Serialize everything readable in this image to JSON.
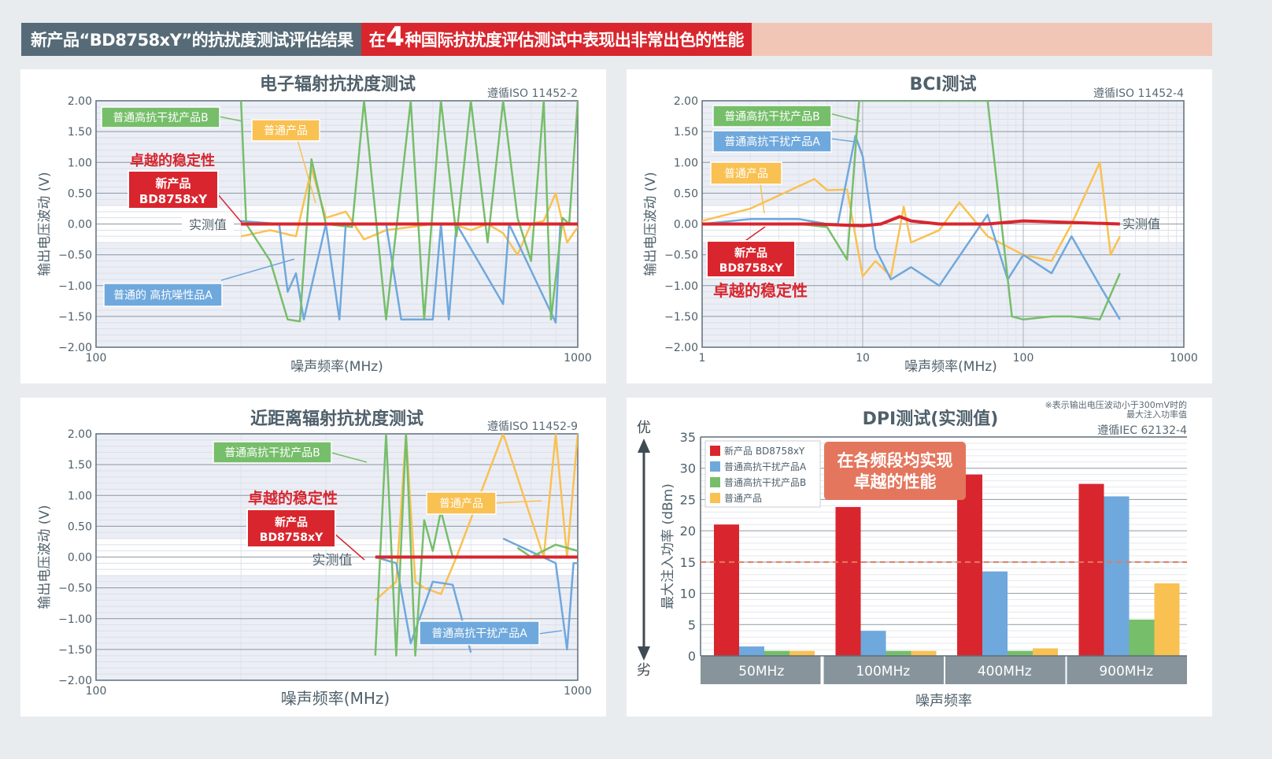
{
  "banner": {
    "left_text": "新产品“BD8758xY”的抗扰度测试评估结果",
    "right_prefix": "在",
    "right_number": "4",
    "right_suffix": "种国际抗扰度评估测试中表现出非常出色的性能",
    "colors": {
      "left_bg": "#566b77",
      "right_bg": "#d9262e",
      "tail_bg": "#f2c6b6"
    }
  },
  "colors": {
    "new_product": "#d9262e",
    "product_a": "#6fa8dc",
    "product_b": "#76be6a",
    "normal_product": "#f9c152",
    "axis": "#5d6f7b",
    "dashed_threshold": "#e47a5f"
  },
  "panels": {
    "radiated": {
      "title": "电子辐射抗扰度测试",
      "standard": "遵循ISO 11452-2",
      "ylabel": "输出电压波动 (V)",
      "xlabel": "噪声频率(MHz)",
      "x_ticks": [
        "100",
        "1000"
      ],
      "y_ticks": [
        "2.00",
        "1.50",
        "1.00",
        "0.50",
        "0.00",
        "−0.50",
        "−1.00",
        "−1.50",
        "−2.00"
      ],
      "labels": {
        "product_b": "普通高抗干扰产品B",
        "normal": "普通产品",
        "stability": "卓越的稳定性",
        "new_product_line1": "新产品",
        "new_product_line2": "BD8758xY",
        "measured": "实测值",
        "product_a": "普通的 高抗噪性品A"
      }
    },
    "bci": {
      "title": "BCI测试",
      "standard": "遵循ISO 11452-4",
      "ylabel": "输出电压波动 (V)",
      "xlabel": "噪声频率(MHz)",
      "x_ticks": [
        "1",
        "10",
        "100",
        "1000"
      ],
      "y_ticks": [
        "2.00",
        "1.50",
        "1.00",
        "0.50",
        "0.00",
        "−0.50",
        "−1.00",
        "−1.50",
        "−2.00"
      ],
      "labels": {
        "product_b": "普通高抗干扰产品B",
        "product_a": "普通高抗干扰产品A",
        "normal": "普通产品",
        "new_product_line1": "新产品",
        "new_product_line2": "BD8758xY",
        "stability": "卓越的稳定性",
        "measured": "实测值"
      }
    },
    "near_field": {
      "title": "近距离辐射抗扰度测试",
      "standard": "遵循ISO 11452-9",
      "ylabel": "输出电压波动 (V)",
      "xlabel": "噪声频率(MHz)",
      "x_ticks": [
        "100",
        "1000"
      ],
      "y_ticks": [
        "2.00",
        "1.50",
        "1.00",
        "0.50",
        "0.00",
        "−0.50",
        "−1.00",
        "−1.50",
        "−2.00"
      ],
      "labels": {
        "product_b": "普通高抗干扰产品B",
        "stability": "卓越的稳定性",
        "new_product_line1": "新产品",
        "new_product_line2": "BD8758xY",
        "measured": "实测值",
        "normal": "普通产品",
        "product_a": "普通高抗干扰产品A"
      }
    },
    "dpi": {
      "title": "DPI测试(实测值)",
      "note_line1": "※表示输出电压波动小于300mV时的",
      "note_line2": "最大注入功率值",
      "standard": "遵循IEC 62132-4",
      "ylabel": "最大注入功率 (dBm)",
      "xlabel": "噪声频率",
      "better": "优",
      "worse": "劣",
      "callout_line1": "在各频段均实现",
      "callout_line2": "卓越的性能",
      "legend": [
        "新产品 BD8758xY",
        "普通高抗干扰产品A",
        "普通高抗干扰产品B",
        "普通产品"
      ]
    }
  },
  "chart_data": [
    {
      "type": "line",
      "title": "电子辐射抗扰度测试",
      "subtitle": "遵循ISO 11452-2",
      "xlabel": "噪声频率(MHz)",
      "ylabel": "输出电压波动 (V)",
      "xscale": "log",
      "xlim": [
        100,
        1000
      ],
      "ylim": [
        -2.0,
        2.0
      ],
      "grid": true,
      "series": [
        {
          "name": "新产品 BD8758xY",
          "color": "#d9262e",
          "x": [
            200,
            1000
          ],
          "y": [
            0.0,
            0.0
          ]
        },
        {
          "name": "普通的 高抗噪性品A",
          "color": "#6fa8dc",
          "x": [
            200,
            240,
            250,
            260,
            270,
            300,
            320,
            330,
            400,
            430,
            500,
            520,
            540,
            560,
            700,
            720,
            900,
            920,
            1000
          ],
          "y": [
            0.05,
            0.0,
            -1.1,
            -0.8,
            -1.55,
            0.0,
            -1.55,
            0.0,
            0.0,
            -1.55,
            -1.55,
            0.0,
            -1.55,
            0.0,
            -1.3,
            0.0,
            -1.6,
            0.0,
            0.0
          ]
        },
        {
          "name": "普通高抗干扰产品B",
          "color": "#76be6a",
          "x": [
            200,
            205,
            230,
            250,
            265,
            280,
            300,
            340,
            360,
            400,
            450,
            480,
            520,
            560,
            600,
            650,
            700,
            750,
            800,
            850,
            880,
            930,
            960,
            1000
          ],
          "y": [
            2.0,
            0.0,
            -0.6,
            -1.55,
            -1.58,
            1.05,
            0.0,
            -0.05,
            2.0,
            -1.55,
            2.0,
            -1.55,
            2.0,
            -0.2,
            2.0,
            -0.3,
            2.0,
            0.1,
            -0.6,
            2.0,
            -1.55,
            0.1,
            0.0,
            2.0
          ]
        },
        {
          "name": "普通产品",
          "color": "#f9c152",
          "x": [
            200,
            230,
            260,
            280,
            300,
            330,
            360,
            400,
            450,
            500,
            550,
            600,
            650,
            700,
            750,
            800,
            850,
            900,
            950,
            1000
          ],
          "y": [
            -0.2,
            -0.1,
            -0.2,
            0.9,
            0.1,
            0.2,
            -0.25,
            -0.1,
            -0.05,
            0.0,
            0.0,
            -0.1,
            0.0,
            -0.15,
            -0.5,
            0.0,
            0.05,
            0.5,
            -0.3,
            -0.05
          ]
        }
      ],
      "annotations": [
        "卓越的稳定性",
        "新产品 BD8758xY",
        "实测值"
      ]
    },
    {
      "type": "line",
      "title": "BCI测试",
      "subtitle": "遵循ISO 11452-4",
      "xlabel": "噪声频率(MHz)",
      "ylabel": "输出电压波动 (V)",
      "xscale": "log",
      "xlim": [
        1,
        1000
      ],
      "ylim": [
        -2.0,
        2.0
      ],
      "grid": true,
      "series": [
        {
          "name": "新产品 BD8758xY",
          "color": "#d9262e",
          "x": [
            1,
            5,
            10,
            13,
            17,
            20,
            30,
            60,
            100,
            400
          ],
          "y": [
            0.0,
            0.0,
            -0.03,
            0.0,
            0.12,
            0.05,
            0.0,
            0.0,
            0.05,
            0.0
          ]
        },
        {
          "name": "普通高抗干扰产品A",
          "color": "#6fa8dc",
          "x": [
            1,
            2,
            4,
            6,
            7,
            9,
            10,
            12,
            15,
            20,
            30,
            60,
            80,
            100,
            150,
            200,
            300,
            400
          ],
          "y": [
            0.0,
            0.08,
            0.08,
            0.0,
            0.0,
            1.43,
            1.1,
            -0.4,
            -0.9,
            -0.7,
            -1.0,
            0.15,
            -0.9,
            -0.5,
            -0.8,
            -0.2,
            -1.0,
            -1.55
          ]
        },
        {
          "name": "普通高抗干扰产品B",
          "color": "#76be6a",
          "x": [
            1,
            4,
            6,
            8,
            9.5,
            40,
            60,
            85,
            100,
            150,
            200,
            300,
            400
          ],
          "y": [
            0.0,
            0.0,
            -0.05,
            -0.58,
            2.0,
            2.0,
            2.0,
            -1.5,
            -1.55,
            -1.5,
            -1.5,
            -1.55,
            -0.8
          ]
        },
        {
          "name": "普通产品",
          "color": "#f9c152",
          "x": [
            1,
            2,
            5,
            6,
            8,
            10,
            12,
            15,
            18,
            20,
            30,
            40,
            60,
            100,
            150,
            200,
            300,
            350,
            400
          ],
          "y": [
            0.05,
            0.25,
            0.73,
            0.55,
            0.56,
            -0.85,
            -0.6,
            -0.85,
            0.28,
            -0.3,
            -0.1,
            0.35,
            -0.2,
            -0.5,
            -0.6,
            0.0,
            1.0,
            -0.5,
            -0.2
          ]
        }
      ],
      "annotations": [
        "卓越的稳定性",
        "新产品 BD8758xY",
        "实测值"
      ]
    },
    {
      "type": "line",
      "title": "近距离辐射抗扰度测试",
      "subtitle": "遵循ISO 11452-9",
      "xlabel": "噪声频率(MHz)",
      "ylabel": "输出电压波动 (V)",
      "xscale": "log",
      "xlim": [
        100,
        1000
      ],
      "ylim": [
        -2.0,
        2.0
      ],
      "grid": true,
      "series": [
        {
          "name": "新产品 BD8758xY",
          "color": "#d9262e",
          "x": [
            380,
            700,
            900,
            1000
          ],
          "y": [
            0.0,
            0.0,
            0.0,
            0.0
          ]
        },
        {
          "name": "普通高抗干扰产品A",
          "color": "#6fa8dc",
          "x": [
            380,
            420,
            450,
            500,
            550,
            600,
            650,
            700,
            900,
            950,
            980,
            1000
          ],
          "y": [
            0.0,
            -0.1,
            -1.4,
            -0.4,
            -0.45,
            -1.55,
            null,
            0.3,
            -0.1,
            -1.5,
            -0.1,
            -0.1
          ]
        },
        {
          "name": "普通高抗干扰产品B",
          "color": "#76be6a",
          "x": [
            380,
            400,
            420,
            440,
            460,
            480,
            500,
            520,
            550,
            700,
            750,
            800,
            900,
            1000
          ],
          "y": [
            -1.6,
            2.0,
            -1.6,
            2.0,
            -1.6,
            0.6,
            0.1,
            0.75,
            0.0,
            null,
            0.15,
            0.0,
            0.2,
            0.1
          ]
        },
        {
          "name": "普通产品",
          "color": "#f9c152",
          "x": [
            380,
            420,
            440,
            460,
            480,
            520,
            560,
            700,
            850,
            900,
            950,
            1000
          ],
          "y": [
            -0.7,
            -0.4,
            2.0,
            -0.4,
            -0.5,
            -0.6,
            0.0,
            2.0,
            0.0,
            2.0,
            0.0,
            2.0
          ]
        }
      ],
      "annotations": [
        "卓越的稳定性",
        "新产品 BD8758xY",
        "实测值"
      ]
    },
    {
      "type": "bar",
      "title": "DPI测试(实测值)",
      "subtitle": "遵循IEC 62132-4",
      "note": "※表示输出电压波动小于300mV时的最大注入功率值",
      "xlabel": "噪声频率",
      "ylabel": "最大注入功率 (dBm)",
      "categories": [
        "50MHz",
        "100MHz",
        "400MHz",
        "900MHz"
      ],
      "ylim": [
        0,
        35
      ],
      "y_ticks": [
        0,
        5,
        10,
        15,
        20,
        25,
        30,
        35
      ],
      "threshold_line": 15,
      "legend_position": "top-left",
      "series": [
        {
          "name": "新产品 BD8758xY",
          "color": "#d9262e",
          "values": [
            21,
            23.8,
            29,
            27.5
          ]
        },
        {
          "name": "普通高抗干扰产品A",
          "color": "#6fa8dc",
          "values": [
            1.5,
            4,
            13.5,
            25.5
          ]
        },
        {
          "name": "普通高抗干扰产品B",
          "color": "#76be6a",
          "values": [
            0.8,
            0.8,
            0.8,
            5.8
          ]
        },
        {
          "name": "普通产品",
          "color": "#f9c152",
          "values": [
            0.8,
            0.8,
            1.2,
            11.6
          ]
        }
      ],
      "annotations": [
        "在各频段均实现卓越的性能",
        "优",
        "劣"
      ]
    }
  ]
}
